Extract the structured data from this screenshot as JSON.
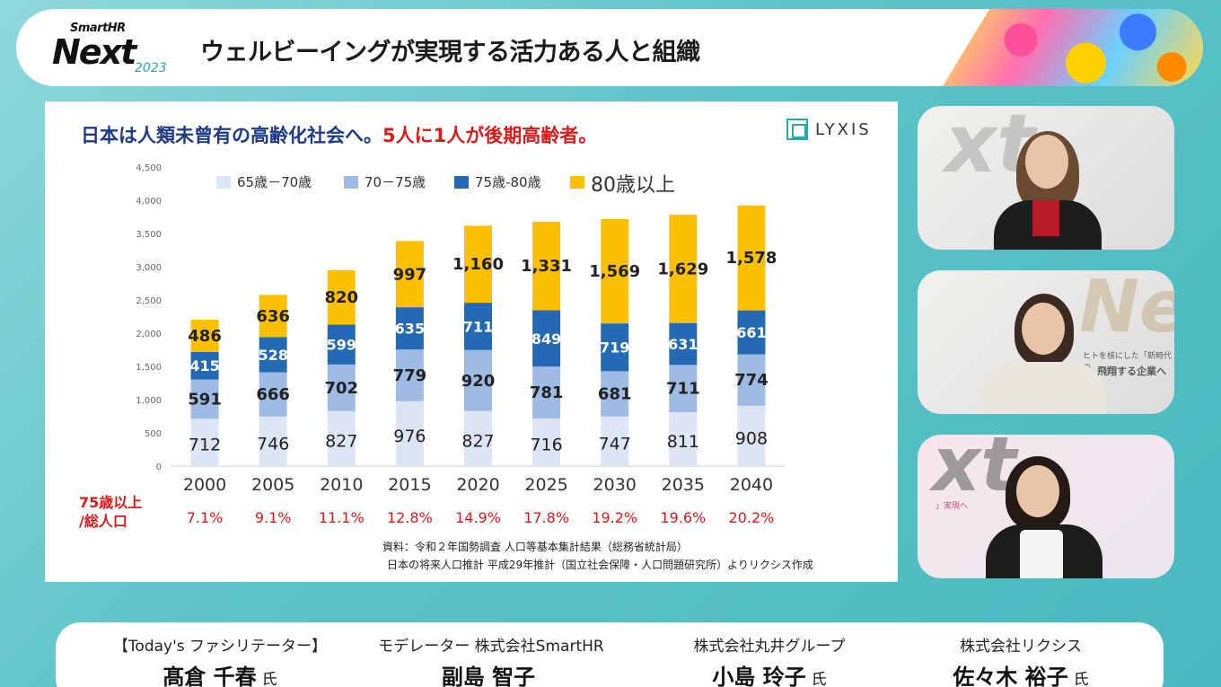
{
  "header": {
    "logo_brand": "SmartHR",
    "logo_word": "Next",
    "logo_year": "2023",
    "title": "ウェルビーイングが実現する活力ある人と組織"
  },
  "slide": {
    "title_blue": "日本は人類未曾有の高齢化社会へ。",
    "title_red": "5人に1人が後期高齢者。",
    "brand": "LYXIS",
    "ratio_label_line1": "75歳以上",
    "ratio_label_line2": "/総人口",
    "ratios": [
      "7.1%",
      "9.1%",
      "11.1%",
      "12.8%",
      "14.9%",
      "17.8%",
      "19.2%",
      "19.6%",
      "20.2%"
    ],
    "source_line1": "資料：令和２年国勢調査 人口等基本集計結果（総務省統計局）",
    "source_line2": "日本の将来人口推計 平成29年推計（国立社会保障・人口問題研究所）よりリクシス作成"
  },
  "chart_data": {
    "type": "bar",
    "stacked": true,
    "title": "日本は人類未曾有の高齢化社会へ。5人に1人が後期高齢者。",
    "categories": [
      "2000",
      "2005",
      "2010",
      "2015",
      "2020",
      "2025",
      "2030",
      "2035",
      "2040"
    ],
    "series": [
      {
        "name": "65歳－70歳",
        "color": "#dde4f3",
        "values": [
          712,
          746,
          827,
          976,
          827,
          716,
          747,
          811,
          908
        ]
      },
      {
        "name": "70－75歳",
        "color": "#9dbbe5",
        "values": [
          591,
          666,
          702,
          779,
          920,
          781,
          681,
          711,
          774
        ]
      },
      {
        "name": "75歳-80歳",
        "color": "#2469b3",
        "values": [
          415,
          528,
          599,
          635,
          711,
          849,
          719,
          631,
          661
        ]
      },
      {
        "name": "80歳以上",
        "color": "#fcc000",
        "values": [
          486,
          636,
          820,
          997,
          1160,
          1331,
          1569,
          1629,
          1578
        ]
      }
    ],
    "value_labels": [
      [
        "712",
        "746",
        "827",
        "976",
        "827",
        "716",
        "747",
        "811",
        "908"
      ],
      [
        "591",
        "666",
        "702",
        "779",
        "920",
        "781",
        "681",
        "711",
        "774"
      ],
      [
        "415",
        "528",
        "599",
        "635",
        "711",
        "849",
        "719",
        "631",
        "661"
      ],
      [
        "486",
        "636",
        "820",
        "997",
        "1,160",
        "1,331",
        "1,569",
        "1,629",
        "1,578"
      ]
    ],
    "y_ticks": [
      "0",
      "500",
      "1,000",
      "1,500",
      "2,000",
      "2,500",
      "3,000",
      "3,500",
      "4,000",
      "4,500"
    ],
    "ylim": [
      0,
      4500
    ],
    "legend_position": "top",
    "xlabel": "",
    "ylabel": ""
  },
  "footer": {
    "speakers": [
      {
        "role": "【Today's ファシリテーター】",
        "name": "髙倉 千春",
        "honorific": "氏"
      },
      {
        "role": "モデレーター 株式会社SmartHR",
        "name": "副島 智子",
        "honorific": ""
      },
      {
        "role": "株式会社丸井グループ",
        "name": "小島 玲子",
        "honorific": "氏"
      },
      {
        "role": "株式会社リクシス",
        "name": "佐々木 裕子",
        "honorific": "氏"
      }
    ]
  },
  "cams": {
    "cam2_caption1": "ヒトを核にした「新時代の",
    "cam2_caption2": "飛翔する企業へ",
    "cam3_caption1": "」実現へ"
  }
}
